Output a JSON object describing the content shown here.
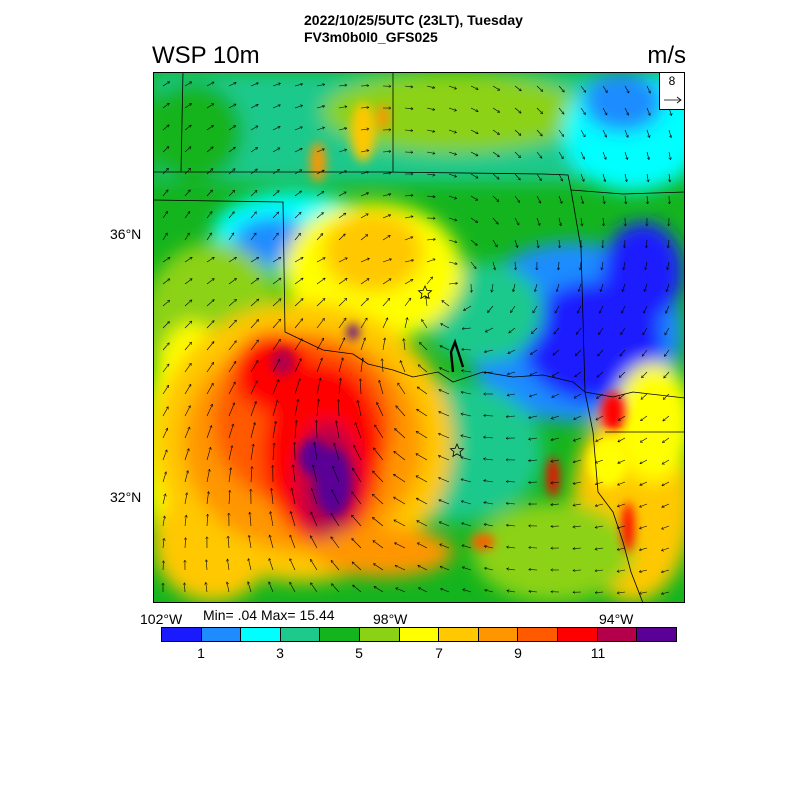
{
  "header": {
    "line1": "2022/10/25/5UTC (23LT), Tuesday",
    "line2": "FV3m0b0l0_GFS025"
  },
  "variable_title": "WSP 10m",
  "units": "m/s",
  "reference_vector": {
    "value": "8",
    "icon": "arrow-right-icon"
  },
  "axes": {
    "lat_labels": [
      "36°N",
      "32°N"
    ],
    "lon_labels": [
      "102°W",
      "98°W",
      "94°W"
    ]
  },
  "stats": {
    "text": "Min= .04 Max= 15.44"
  },
  "colorbar": {
    "colors": [
      "#1a1aff",
      "#1e8cff",
      "#00ffff",
      "#1ec98c",
      "#14b41e",
      "#8cd214",
      "#ffff00",
      "#ffc800",
      "#ff9600",
      "#ff5a00",
      "#ff0000",
      "#b4004b",
      "#5a0096"
    ],
    "labels": [
      "1",
      "3",
      "5",
      "7",
      "9",
      "11"
    ]
  },
  "markers": [
    {
      "name": "star-marker",
      "icon": "star-icon"
    },
    {
      "name": "star-marker",
      "icon": "star-icon"
    }
  ]
}
